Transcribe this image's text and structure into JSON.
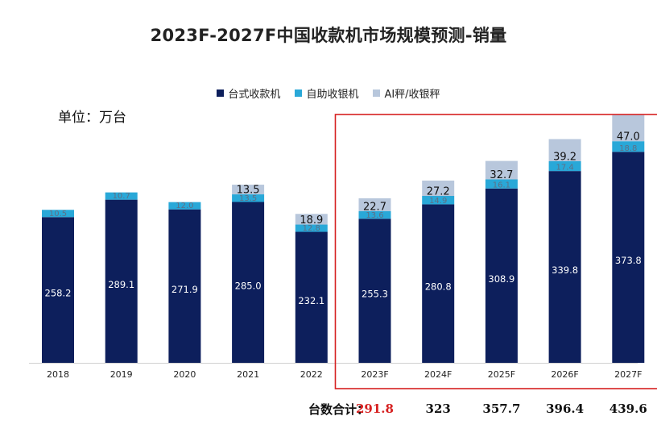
{
  "title": "2023F-2027F中国收款机市场规模预测-销量",
  "unit_label": "单位：万台",
  "totals_label": "台数合计：",
  "colors": {
    "desk": "#0d1f5c",
    "self": "#29a8d8",
    "ai": "#b8c7dc",
    "highlight": "#d62020",
    "first_total": "#d62020"
  },
  "chart_data": {
    "type": "bar",
    "stacked": true,
    "categories": [
      "2018",
      "2019",
      "2020",
      "2021",
      "2022",
      "2023F",
      "2024F",
      "2025F",
      "2026F",
      "2027F"
    ],
    "series": [
      {
        "name": "台式收款机",
        "values": [
          258.2,
          289.1,
          271.9,
          285.0,
          232.1,
          255.3,
          280.8,
          308.9,
          339.8,
          373.8
        ],
        "labels": [
          "258.2",
          "289.1",
          "271.9",
          "285.0",
          "232.1",
          "255.3",
          "280.8",
          "308.9",
          "339.8",
          "373.8"
        ]
      },
      {
        "name": "自助收银机",
        "values": [
          10.5,
          10.7,
          12.0,
          13.5,
          12.8,
          13.6,
          14.9,
          16.1,
          17.4,
          18.8
        ],
        "labels": [
          "10.5",
          "10.7",
          "12.0",
          "13.5",
          "12.8",
          "13.6",
          "14.9",
          "16.1",
          "17.4",
          "18.8"
        ]
      },
      {
        "name": "AI秤/收银秤",
        "values": [
          null,
          null,
          null,
          13.5,
          18.9,
          22.7,
          27.2,
          32.7,
          39.2,
          47.0
        ],
        "labels": [
          null,
          null,
          null,
          "13.5",
          "18.9",
          "22.7",
          "27.2",
          "32.7",
          "39.2",
          "47.0"
        ]
      }
    ],
    "totals": [
      {
        "category": "2023F",
        "value": "291.8"
      },
      {
        "category": "2024F",
        "value": "323"
      },
      {
        "category": "2025F",
        "value": "357.7"
      },
      {
        "category": "2026F",
        "value": "396.4"
      },
      {
        "category": "2027F",
        "value": "439.6"
      }
    ],
    "highlight_range": [
      "2023F",
      "2027F"
    ],
    "legend_position": "top-center",
    "grid": false
  }
}
